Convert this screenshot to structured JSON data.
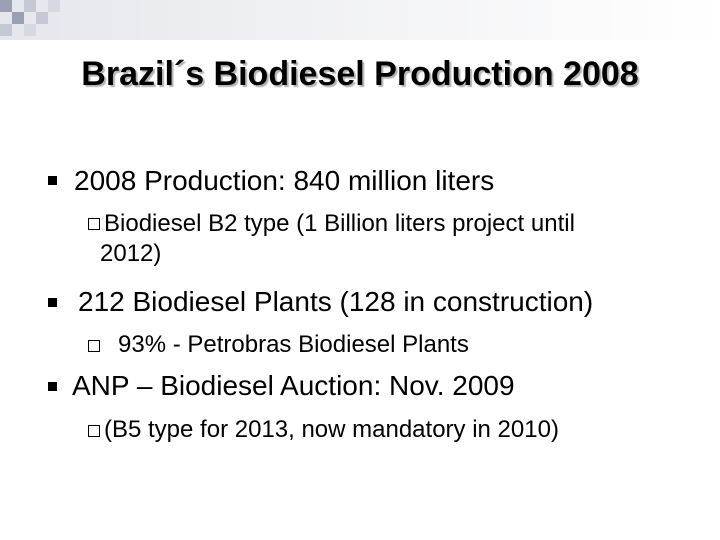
{
  "title": "Brazil´s Biodiesel Production 2008",
  "bullets": [
    {
      "text": "2008 Production: 840 million liters",
      "sub": [
        "Biodiesel B2 type (1 Billion liters project until",
        "2012)"
      ]
    },
    {
      "text": "212 Biodiesel Plants (128 in construction)",
      "sub": [
        "93% - Petrobras Biodiesel Plants"
      ]
    },
    {
      "text": "ANP – Biodiesel Auction: Nov. 2009",
      "sub": [
        "(B5 type for 2013, now mandatory in 2010)"
      ]
    }
  ],
  "icons": {
    "level1": "filled-square-bullet",
    "level2": "hollow-square-bullet"
  }
}
